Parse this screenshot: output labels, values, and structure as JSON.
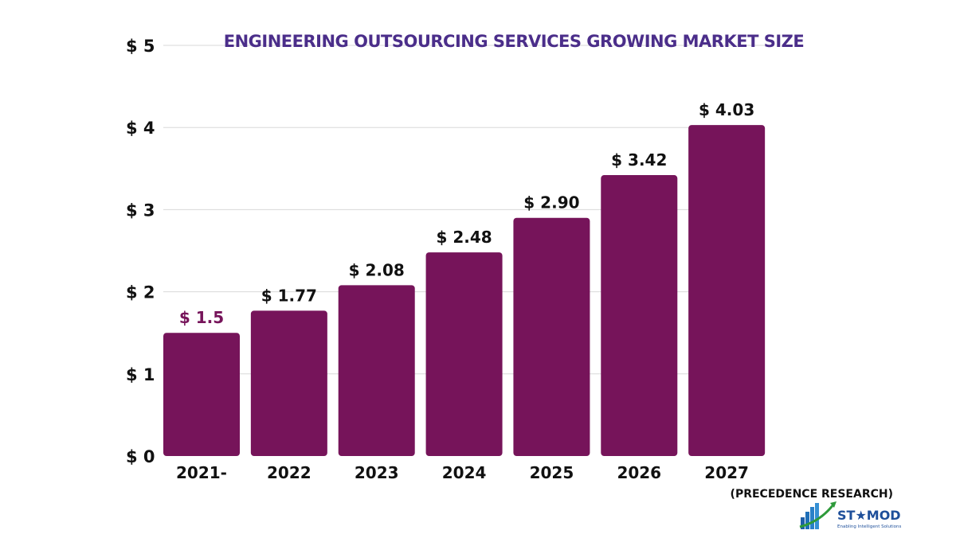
{
  "chart_data": {
    "type": "bar",
    "title": "ENGINEERING OUTSOURCING SERVICES GROWING  MARKET SIZE",
    "categories": [
      "2021-",
      "2022",
      "2023",
      "2024",
      "2025",
      "2026",
      "2027"
    ],
    "values": [
      1.5,
      1.77,
      2.08,
      2.48,
      2.9,
      3.42,
      4.03
    ],
    "data_labels": [
      "$ 1.5",
      "$ 1.77",
      "$ 2.08",
      "$ 2.48",
      "$ 2.90",
      "$ 3.42",
      "$ 4.03"
    ],
    "ylim": [
      0,
      5
    ],
    "yticks": [
      0,
      1,
      2,
      3,
      4,
      5
    ],
    "ytick_labels": [
      "$ 0",
      "$ 1",
      "$ 2",
      "$ 3",
      "$ 4",
      "$ 5"
    ],
    "grid": true,
    "xlabel": "",
    "ylabel": "",
    "bar_color": "#76145a",
    "highlight_label_color": "#76145a",
    "title_color": "#4b2e8a"
  },
  "source": "(PRECEDENCE RESEARCH)",
  "logo": {
    "text": "ST★MOD",
    "tagline": "Enabling Intelligent Solutions"
  }
}
